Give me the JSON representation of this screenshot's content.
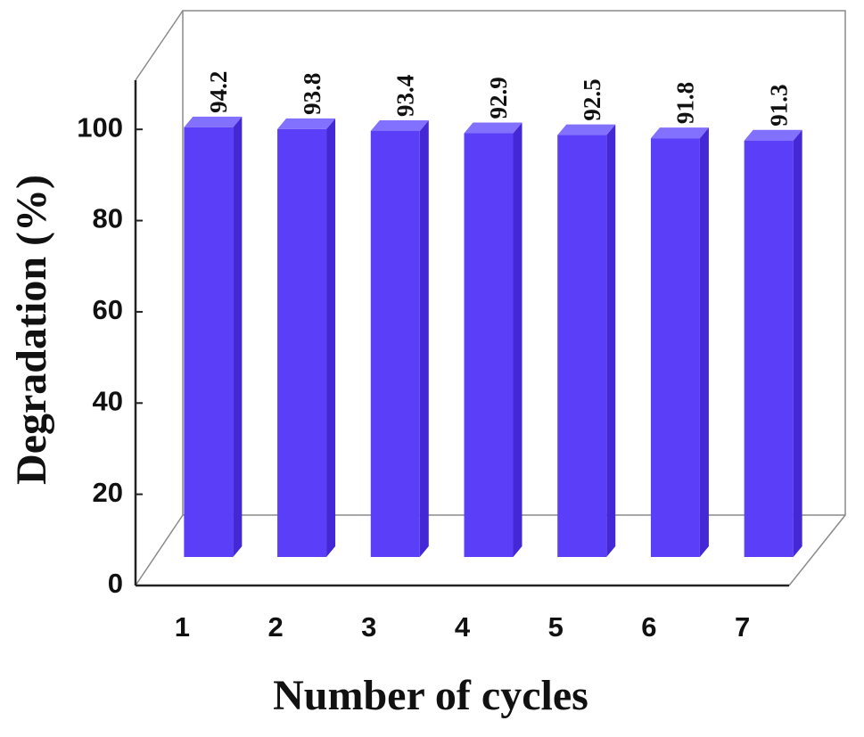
{
  "chart_data": {
    "type": "bar3d",
    "x_label": "Number of cycles",
    "y_label": "Degradation (%)",
    "categories": [
      "1",
      "2",
      "3",
      "4",
      "5",
      "6",
      "7"
    ],
    "values": [
      94.2,
      93.8,
      93.4,
      92.9,
      92.5,
      91.8,
      91.3
    ],
    "color": "#5b3ff8",
    "ylim": [
      0,
      110
    ],
    "yticks": [
      0,
      20,
      40,
      60,
      80,
      100
    ]
  }
}
